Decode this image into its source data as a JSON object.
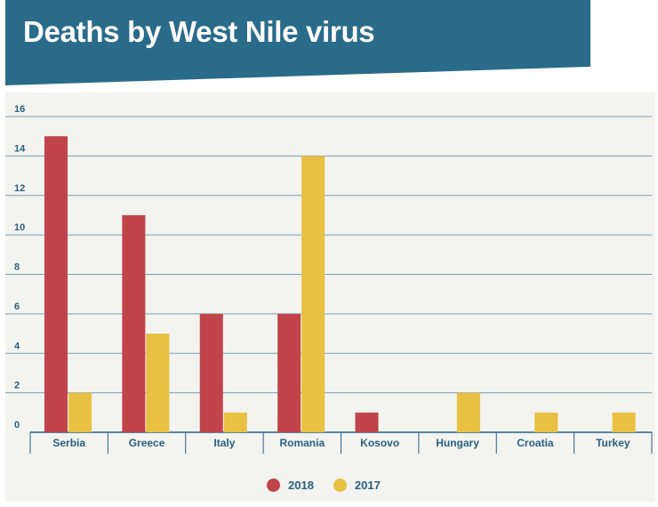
{
  "header": {
    "title": "Deaths by West Nile virus",
    "background_color": "#2a6b8a"
  },
  "chart_data": {
    "type": "bar",
    "title": "Deaths by West Nile virus",
    "categories": [
      "Serbia",
      "Greece",
      "Italy",
      "Romania",
      "Kosovo",
      "Hungary",
      "Croatia",
      "Turkey"
    ],
    "series": [
      {
        "name": "2018",
        "color": "#c0444a",
        "values": [
          15,
          11,
          6,
          6,
          1,
          0,
          0,
          0
        ]
      },
      {
        "name": "2017",
        "color": "#e8c042",
        "values": [
          2,
          5,
          1,
          14,
          0,
          2,
          1,
          1
        ]
      }
    ],
    "ylim": [
      0,
      16
    ],
    "yticks": [
      0,
      2,
      4,
      6,
      8,
      10,
      12,
      14,
      16
    ],
    "grid": true,
    "legend_position": "bottom-center",
    "xlabel": "",
    "ylabel": ""
  }
}
